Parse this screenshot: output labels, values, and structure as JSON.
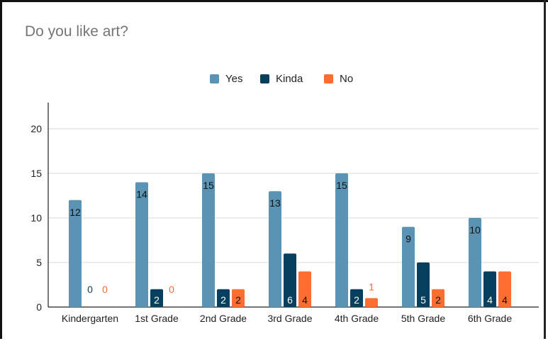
{
  "chart_data": {
    "type": "bar",
    "title": "Do you like art?",
    "xlabel": "",
    "ylabel": "",
    "categories": [
      "Kindergarten",
      "1st Grade",
      "2nd Grade",
      "3rd Grade",
      "4th Grade",
      "5th Grade",
      "6th Grade"
    ],
    "series": [
      {
        "name": "Yes",
        "color": "#5b93b4",
        "values": [
          12,
          14,
          15,
          13,
          15,
          9,
          10
        ]
      },
      {
        "name": "Kinda",
        "color": "#073f5e",
        "values": [
          0,
          2,
          2,
          6,
          2,
          5,
          4
        ]
      },
      {
        "name": "No",
        "color": "#ff6d31",
        "values": [
          0,
          0,
          2,
          4,
          1,
          2,
          4
        ]
      }
    ],
    "ylim": [
      0,
      23
    ],
    "yticks": [
      0,
      5,
      10,
      15,
      20
    ],
    "grid": true,
    "legend_position": "top"
  }
}
